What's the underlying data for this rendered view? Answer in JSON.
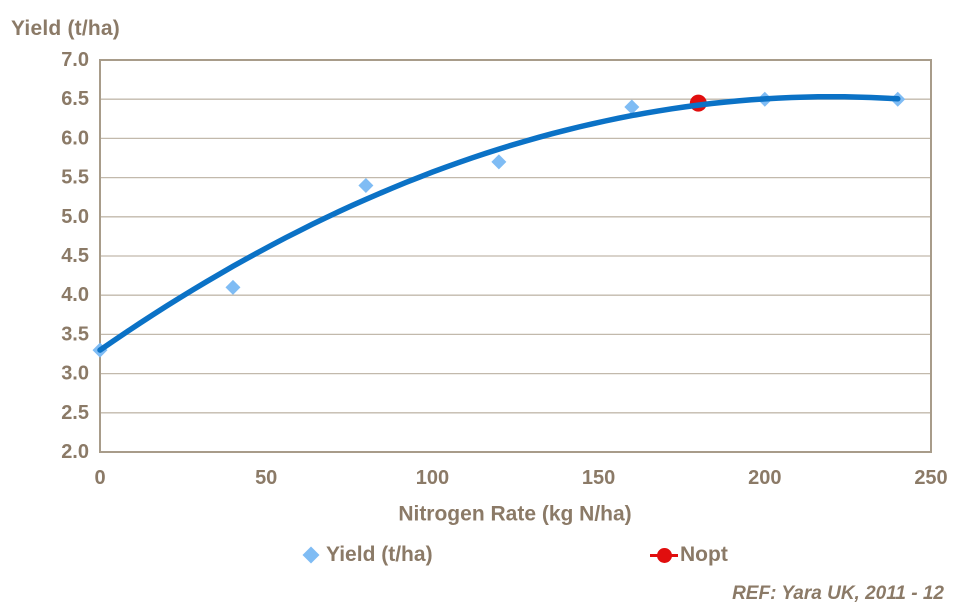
{
  "chart_data": {
    "type": "scatter",
    "title": "Yield (t/ha)",
    "xlabel": "Nitrogen Rate (kg N/ha)",
    "ylabel": "Yield (t/ha)",
    "xlim": [
      0,
      250
    ],
    "ylim": [
      2.0,
      7.0
    ],
    "x_ticks": [
      "0",
      "50",
      "100",
      "150",
      "200",
      "250"
    ],
    "x_tick_values": [
      0,
      50,
      100,
      150,
      200,
      250
    ],
    "y_ticks": [
      "7.0",
      "6.5",
      "6.0",
      "5.5",
      "5.0",
      "4.5",
      "4.0",
      "3.5",
      "3.0",
      "2.5",
      "2.0"
    ],
    "y_tick_values": [
      7.0,
      6.5,
      6.0,
      5.5,
      5.0,
      4.5,
      4.0,
      3.5,
      3.0,
      2.5,
      2.0
    ],
    "grid": "horizontal",
    "legend_position": "bottom",
    "series": [
      {
        "name": "Yield (t/ha)",
        "marker": "diamond",
        "color": "#7FBCF4",
        "points": [
          [
            0,
            3.3
          ],
          [
            40,
            4.1
          ],
          [
            80,
            5.4
          ],
          [
            120,
            5.7
          ],
          [
            160,
            6.4
          ],
          [
            200,
            6.5
          ],
          [
            240,
            6.5
          ]
        ]
      },
      {
        "name": "Nopt",
        "marker": "circle",
        "color": "#E10E0E",
        "points": [
          [
            180,
            6.45
          ]
        ]
      }
    ],
    "trendline": {
      "applies_to": "Yield (t/ha)",
      "fit": "quadratic",
      "coefficients": {
        "a": 3.3,
        "b": 0.02937,
        "c": -6.674e-05
      },
      "x_range": [
        0,
        240
      ],
      "color": "#0B72C6"
    },
    "annotation": "REF: Yara UK, 2011 - 12"
  },
  "colors": {
    "text": "#8B7A67",
    "gridline": "#C2B9AC",
    "frame": "#A89C8A",
    "curve": "#0B72C6",
    "yield_marker": "#7FBCF4",
    "nopt_marker": "#E10E0E",
    "background": "#FFFFFF"
  }
}
